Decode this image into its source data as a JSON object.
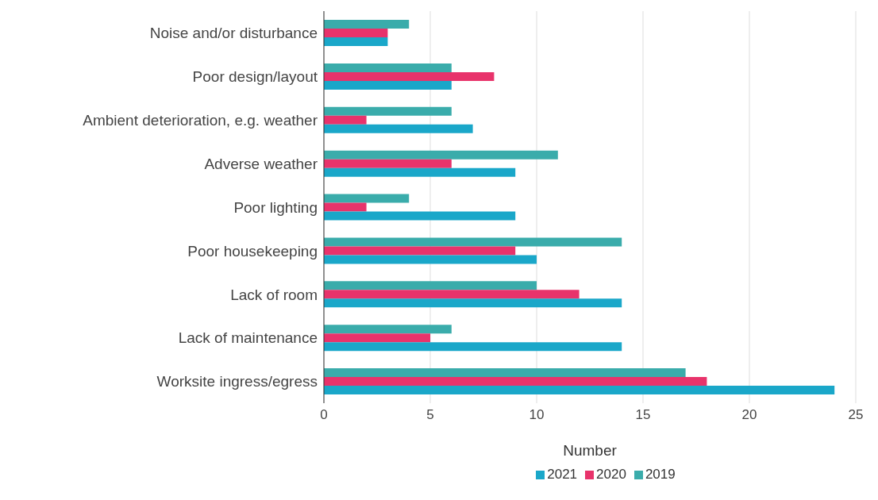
{
  "chart_data": {
    "type": "bar",
    "orientation": "horizontal",
    "xlabel": "Number",
    "categories": [
      "Noise and/or disturbance",
      "Poor design/layout",
      "Ambient deterioration, e.g. weather",
      "Adverse weather",
      "Poor lighting",
      "Poor housekeeping",
      "Lack of room",
      "Lack of maintenance",
      "Worksite ingress/egress"
    ],
    "series": [
      {
        "name": "2021",
        "color": "#1aa7c9",
        "values": [
          3,
          6,
          7,
          9,
          9,
          10,
          14,
          14,
          24
        ]
      },
      {
        "name": "2020",
        "color": "#e8336b",
        "values": [
          3,
          8,
          2,
          6,
          2,
          9,
          12,
          5,
          18
        ]
      },
      {
        "name": "2019",
        "color": "#3aacab",
        "values": [
          4,
          6,
          6,
          11,
          4,
          14,
          10,
          6,
          17
        ]
      }
    ],
    "xlim": [
      0,
      25
    ],
    "xticks": [
      0,
      5,
      10,
      15,
      20,
      25
    ],
    "grid": "x",
    "legend": "bottom"
  }
}
